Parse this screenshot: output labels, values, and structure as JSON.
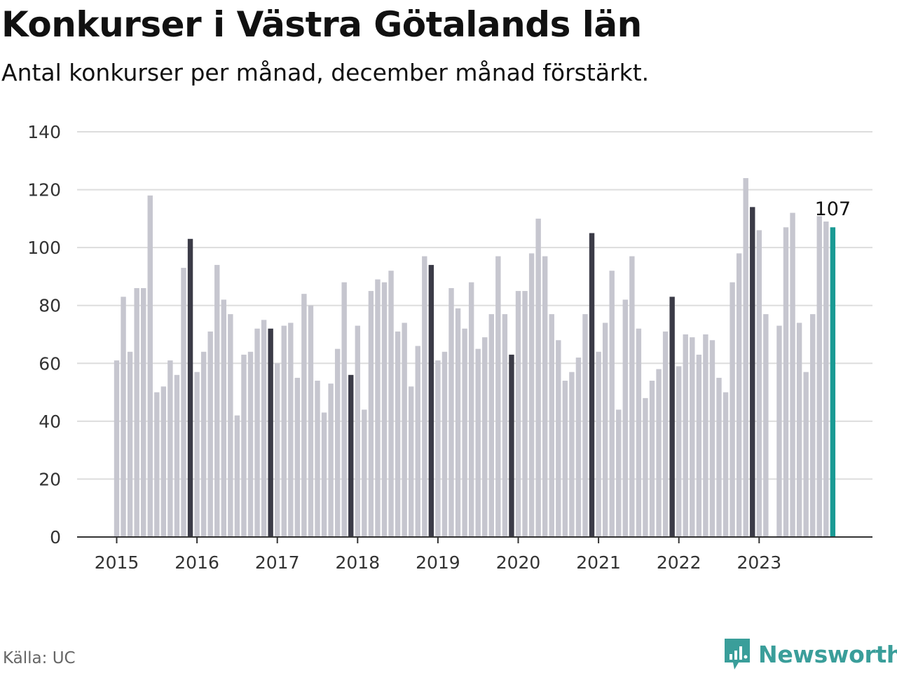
{
  "title": "Konkurser i Västra Götalands län",
  "subtitle": "Antal konkurser per månad, december månad förstärkt.",
  "source": "Källa: UC",
  "brand": "Newsworthy",
  "colors": {
    "regular": "#c6c6cf",
    "december": "#3b3b47",
    "latest": "#1a9a94",
    "grid": "#dddddd",
    "axis": "#333333",
    "brand": "#3a9e9a"
  },
  "chart_data": {
    "type": "bar",
    "title": "Konkurser i Västra Götalands län",
    "subtitle": "Antal konkurser per månad, december månad förstärkt.",
    "start_month": "2015-01",
    "ylim": [
      0,
      140
    ],
    "yticks": [
      "0",
      "20",
      "40",
      "60",
      "80",
      "100",
      "120",
      "140"
    ],
    "xticks": [
      "2015",
      "2016",
      "2017",
      "2018",
      "2019",
      "2020",
      "2021",
      "2022",
      "2023"
    ],
    "grid": true,
    "highlight": "December bars dark, latest bar teal",
    "latest_label": "107",
    "values": [
      61,
      83,
      64,
      86,
      86,
      118,
      50,
      52,
      61,
      56,
      93,
      103,
      57,
      64,
      71,
      94,
      82,
      77,
      42,
      63,
      64,
      72,
      75,
      72,
      60,
      73,
      74,
      55,
      84,
      80,
      54,
      43,
      53,
      65,
      88,
      56,
      73,
      44,
      85,
      89,
      88,
      92,
      71,
      74,
      52,
      66,
      97,
      94,
      61,
      64,
      86,
      79,
      72,
      88,
      65,
      69,
      77,
      97,
      77,
      63,
      85,
      85,
      98,
      110,
      97,
      77,
      68,
      54,
      57,
      62,
      77,
      105,
      64,
      74,
      92,
      44,
      82,
      97,
      72,
      48,
      54,
      58,
      71,
      83,
      59,
      70,
      69,
      63,
      70,
      68,
      55,
      50,
      88,
      98,
      124,
      114,
      106,
      77,
      0,
      73,
      107,
      112,
      74,
      57,
      77,
      111,
      109,
      107
    ]
  }
}
